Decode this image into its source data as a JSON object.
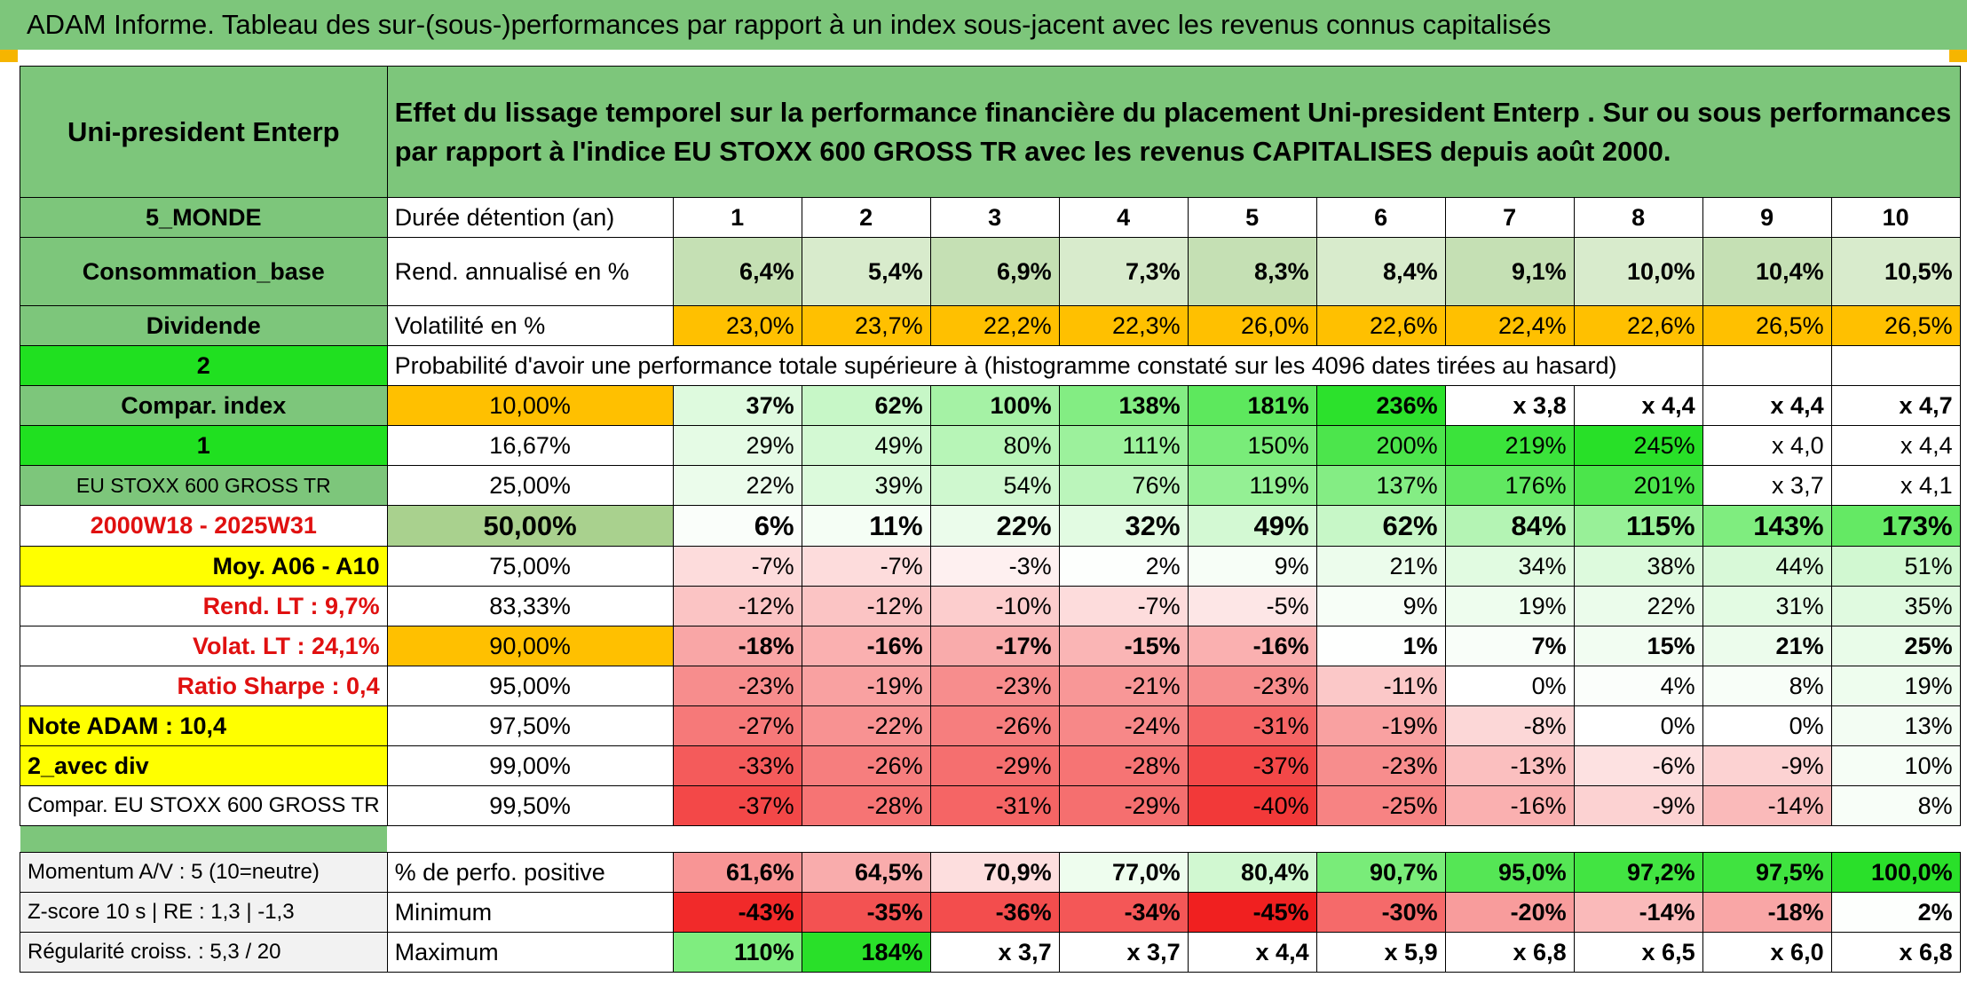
{
  "title": "ADAM Informe. Tableau des sur-(sous-)performances par rapport à un index sous-jacent avec les revenus connus capitalisés",
  "header": {
    "company": "Uni-president Enterp",
    "description": "Effet du lissage temporel sur la performance financière du placement Uni-president Enterp . Sur ou sous performances par rapport à l'indice EU STOXX 600 GROSS TR avec les revenus CAPITALISES depuis août 2000."
  },
  "years": [
    "1",
    "2",
    "3",
    "4",
    "5",
    "6",
    "7",
    "8",
    "9",
    "10"
  ],
  "rows": {
    "duration": {
      "left": "5_MONDE",
      "label": "Durée détention (an)"
    },
    "yield": {
      "left": "Consommation_base",
      "label": "Rend. annualisé en %",
      "values": [
        "6,4%",
        "5,4%",
        "6,9%",
        "7,3%",
        "8,3%",
        "8,4%",
        "9,1%",
        "10,0%",
        "10,4%",
        "10,5%"
      ]
    },
    "volatility": {
      "left": "Dividende",
      "label": "Volatilité en %",
      "values": [
        "23,0%",
        "23,7%",
        "22,2%",
        "22,3%",
        "26,0%",
        "22,6%",
        "22,4%",
        "22,6%",
        "26,5%",
        "26,5%"
      ]
    },
    "probability": {
      "left": "2",
      "label": "Probabilité d'avoir une performance totale supérieure à (histogramme constaté sur les 4096 dates tirées au hasard)"
    }
  },
  "percentiles": [
    {
      "left": "Compar. index",
      "pct": "10,00%",
      "values": [
        "37%",
        "62%",
        "100%",
        "138%",
        "181%",
        "236%",
        "x 3,8",
        "x 4,4",
        "x 4,4",
        "x 4,7"
      ]
    },
    {
      "left": "1",
      "pct": "16,67%",
      "values": [
        "29%",
        "49%",
        "80%",
        "111%",
        "150%",
        "200%",
        "219%",
        "245%",
        "x 4,0",
        "x 4,4"
      ]
    },
    {
      "left": "EU STOXX 600 GROSS TR",
      "pct": "25,00%",
      "values": [
        "22%",
        "39%",
        "54%",
        "76%",
        "119%",
        "137%",
        "176%",
        "201%",
        "x 3,7",
        "x 4,1"
      ]
    },
    {
      "left": "2000W18 - 2025W31",
      "pct": "50,00%",
      "values": [
        "6%",
        "11%",
        "22%",
        "32%",
        "49%",
        "62%",
        "84%",
        "115%",
        "143%",
        "173%"
      ]
    },
    {
      "left": "Moy. A06 - A10",
      "pct": "75,00%",
      "values": [
        "-7%",
        "-7%",
        "-3%",
        "2%",
        "9%",
        "21%",
        "34%",
        "38%",
        "44%",
        "51%"
      ]
    },
    {
      "left": "Rend. LT :   9,7%",
      "pct": "83,33%",
      "values": [
        "-12%",
        "-12%",
        "-10%",
        "-7%",
        "-5%",
        "9%",
        "19%",
        "22%",
        "31%",
        "35%"
      ]
    },
    {
      "left": "Volat. LT :   24,1%",
      "pct": "90,00%",
      "values": [
        "-18%",
        "-16%",
        "-17%",
        "-15%",
        "-16%",
        "1%",
        "7%",
        "15%",
        "21%",
        "25%"
      ]
    },
    {
      "left": "Ratio Sharpe :    0,4",
      "pct": "95,00%",
      "values": [
        "-23%",
        "-19%",
        "-23%",
        "-21%",
        "-23%",
        "-11%",
        "0%",
        "4%",
        "8%",
        "19%"
      ]
    },
    {
      "left": "Note ADAM : 10,4",
      "pct": "97,50%",
      "values": [
        "-27%",
        "-22%",
        "-26%",
        "-24%",
        "-31%",
        "-19%",
        "-8%",
        "0%",
        "0%",
        "13%"
      ]
    },
    {
      "left": "2_avec div",
      "pct": "99,00%",
      "values": [
        "-33%",
        "-26%",
        "-29%",
        "-28%",
        "-37%",
        "-23%",
        "-13%",
        "-6%",
        "-9%",
        "10%"
      ]
    },
    {
      "left": "Compar. EU STOXX 600 GROSS TR",
      "pct": "99,50%",
      "values": [
        "-37%",
        "-28%",
        "-31%",
        "-29%",
        "-40%",
        "-25%",
        "-16%",
        "-9%",
        "-14%",
        "8%"
      ]
    }
  ],
  "summary": [
    {
      "left": "Momentum A/V : 5 (10=neutre)",
      "label": "% de perfo. positive",
      "values": [
        "61,6%",
        "64,5%",
        "70,9%",
        "77,0%",
        "80,4%",
        "90,7%",
        "95,0%",
        "97,2%",
        "97,5%",
        "100,0%"
      ]
    },
    {
      "left": "Z-score 10 s | RE : 1,3 | -1,3",
      "label": "Minimum",
      "values": [
        "-43%",
        "-35%",
        "-36%",
        "-34%",
        "-45%",
        "-30%",
        "-20%",
        "-14%",
        "-18%",
        "2%"
      ]
    },
    {
      "left": "Régularité croiss. : 5,3 / 20",
      "label": "Maximum",
      "values": [
        "110%",
        "184%",
        "x 3,7",
        "x 3,7",
        "x 4,4",
        "x 5,9",
        "x 6,8",
        "x 6,5",
        "x 6,0",
        "x 6,8"
      ]
    }
  ],
  "colors": {
    "header_green": "#7dc67b",
    "bright_green": "#20e020",
    "orange": "#ffc000",
    "yellow": "#ffff00",
    "red_text": "#e01010",
    "strong_red": "#f02020"
  }
}
